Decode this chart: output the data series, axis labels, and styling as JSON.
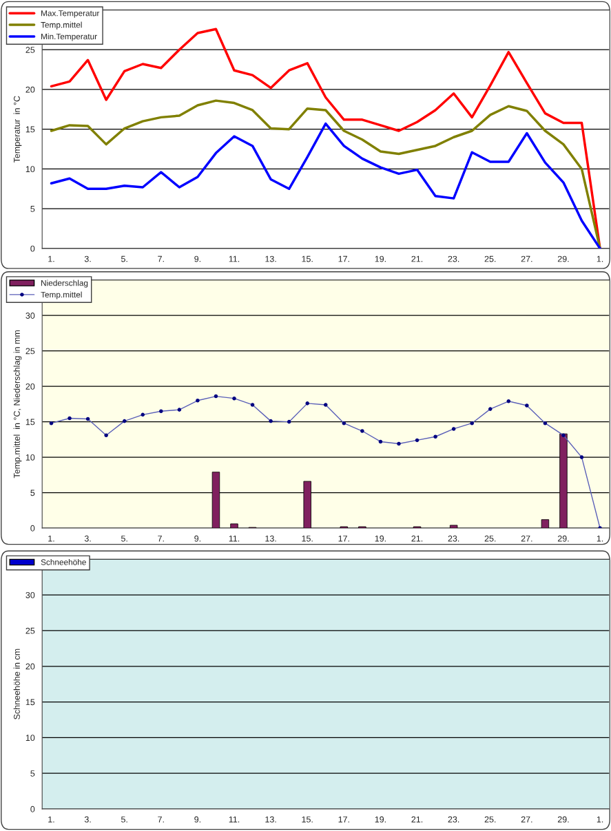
{
  "chart_data": [
    {
      "type": "line",
      "ylabel": "Temperatur  in °C",
      "ylim": [
        0,
        30
      ],
      "yticks": [
        0,
        5,
        10,
        15,
        20,
        25,
        {
          "value": 30,
          "label": null
        }
      ],
      "grid": "y",
      "legend": "top left",
      "categories": [
        "1.",
        null,
        "3.",
        null,
        "5.",
        null,
        "7.",
        null,
        "9.",
        null,
        "11.",
        null,
        "13.",
        null,
        "15.",
        null,
        "17.",
        null,
        "19.",
        null,
        "21.",
        null,
        "23.",
        null,
        "25.",
        null,
        "27.",
        null,
        "29.",
        null,
        "1."
      ],
      "series": [
        {
          "name": "Max.Temperatur",
          "color": "#ff0000",
          "values": [
            20.4,
            21.0,
            23.7,
            18.7,
            22.3,
            23.2,
            22.7,
            25.0,
            27.1,
            27.6,
            22.4,
            21.8,
            20.2,
            22.4,
            23.3,
            19.0,
            16.2,
            16.2,
            15.5,
            14.8,
            15.9,
            17.4,
            19.5,
            16.5,
            20.5,
            24.7,
            20.8,
            17.0,
            15.8,
            15.8,
            0
          ]
        },
        {
          "name": "Temp.mittel",
          "color": "#808000",
          "values": [
            14.8,
            15.5,
            15.4,
            13.1,
            15.1,
            16.0,
            16.5,
            16.7,
            18.0,
            18.6,
            18.3,
            17.4,
            15.1,
            15.0,
            17.6,
            17.4,
            14.8,
            13.7,
            12.2,
            11.9,
            12.4,
            12.9,
            14.0,
            14.8,
            16.8,
            17.9,
            17.3,
            14.8,
            13.1,
            10.0,
            0
          ]
        },
        {
          "name": "Min.Temperatur",
          "color": "#0000ff",
          "values": [
            8.2,
            8.8,
            7.5,
            7.5,
            7.9,
            7.7,
            9.6,
            7.7,
            9.0,
            12.0,
            14.1,
            12.9,
            8.7,
            7.5,
            11.5,
            15.7,
            12.9,
            11.3,
            10.2,
            9.4,
            9.9,
            6.6,
            6.3,
            12.1,
            10.9,
            10.9,
            14.5,
            10.8,
            8.3,
            3.5,
            0
          ]
        }
      ]
    },
    {
      "type": "bar",
      "ylabel": "Temp.mittel  in °C, Niederschlag in mm",
      "ylim": [
        0,
        35
      ],
      "yticks": [
        0,
        5,
        10,
        15,
        20,
        25,
        30
      ],
      "grid": "y",
      "legend": "top left",
      "categories": [
        "1.",
        null,
        "3.",
        null,
        "5.",
        null,
        "7.",
        null,
        "9.",
        null,
        "11.",
        null,
        "13.",
        null,
        "15.",
        null,
        "17.",
        null,
        "19.",
        null,
        "21.",
        null,
        "23.",
        null,
        "25.",
        null,
        "27.",
        null,
        "29.",
        null,
        "1."
      ],
      "series": [
        {
          "name": "Niederschlag",
          "type": "bar",
          "color": "#80205f",
          "values": [
            null,
            null,
            null,
            null,
            null,
            null,
            null,
            null,
            null,
            7.9,
            0.6,
            0.1,
            null,
            null,
            6.6,
            null,
            0.2,
            0.2,
            null,
            null,
            0.2,
            null,
            0.4,
            null,
            null,
            null,
            null,
            1.2,
            13.3,
            null,
            null
          ]
        },
        {
          "name": "Temp.mittel",
          "type": "line",
          "marker": "circle",
          "color": "#5a5fb8",
          "values": [
            14.8,
            15.5,
            15.4,
            13.1,
            15.1,
            16.0,
            16.5,
            16.7,
            18.0,
            18.6,
            18.3,
            17.4,
            15.1,
            15.0,
            17.6,
            17.4,
            14.8,
            13.7,
            12.2,
            11.9,
            12.4,
            12.9,
            14.0,
            14.8,
            16.8,
            17.9,
            17.3,
            14.8,
            13.1,
            10.0,
            0
          ]
        }
      ]
    },
    {
      "type": "bar",
      "ylabel": "Schneehöhe in cm",
      "ylim": [
        0,
        35
      ],
      "yticks": [
        0,
        5,
        10,
        15,
        20,
        25,
        30
      ],
      "grid": "y",
      "legend": "top left",
      "categories": [
        "1.",
        null,
        "3.",
        null,
        "5.",
        null,
        "7.",
        null,
        "9.",
        null,
        "11.",
        null,
        "13.",
        null,
        "15.",
        null,
        "17.",
        null,
        "19.",
        null,
        "21.",
        null,
        "23.",
        null,
        "25.",
        null,
        "27.",
        null,
        "29.",
        null,
        "1."
      ],
      "series": [
        {
          "name": "Schneehöhe",
          "type": "bar",
          "color": "#0000cc",
          "values": [
            null,
            null,
            null,
            null,
            null,
            null,
            null,
            null,
            null,
            null,
            null,
            null,
            null,
            null,
            null,
            null,
            null,
            null,
            null,
            null,
            null,
            null,
            null,
            null,
            null,
            null,
            null,
            null,
            null,
            null,
            null
          ]
        }
      ]
    }
  ]
}
